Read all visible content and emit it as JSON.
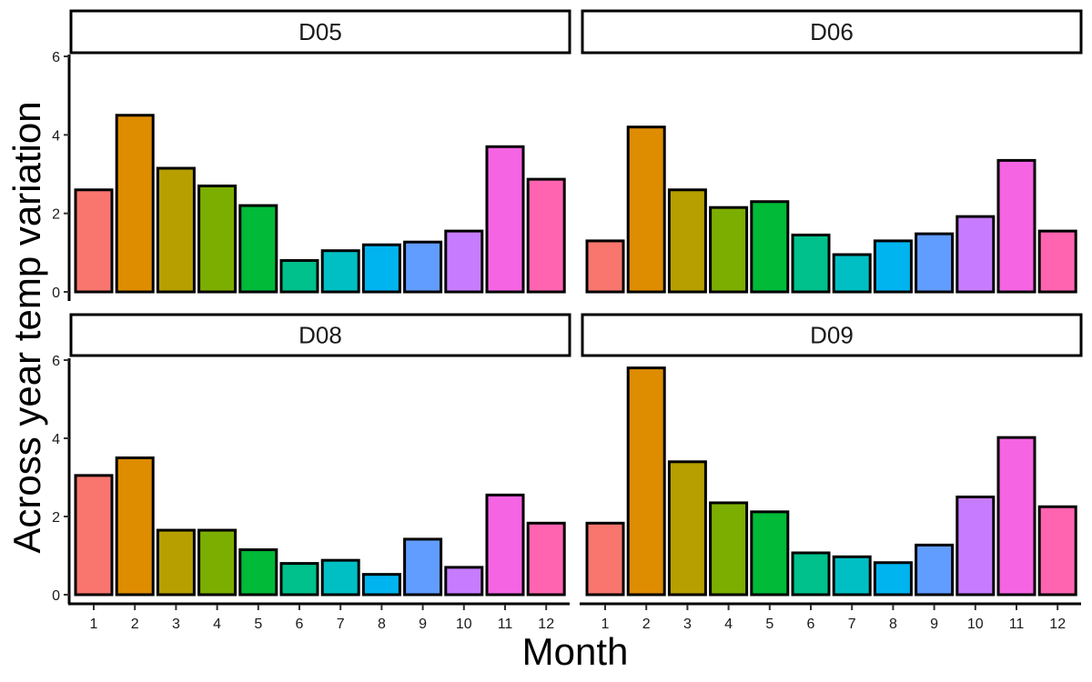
{
  "chart_data": {
    "type": "bar",
    "facet_layout": "2x2 grid, shared axes",
    "xlabel": "Month",
    "ylabel": "Across year temp variation",
    "ylim": [
      0,
      6.2
    ],
    "yticks": [
      0,
      2,
      4,
      6
    ],
    "grid": false,
    "legend": "none",
    "categories": [
      "1",
      "2",
      "3",
      "4",
      "5",
      "6",
      "7",
      "8",
      "9",
      "10",
      "11",
      "12"
    ],
    "colors": [
      "#F8766D",
      "#DE8C00",
      "#B79F00",
      "#7CAE00",
      "#00BA38",
      "#00C08B",
      "#00BFC4",
      "#00B4F0",
      "#619CFF",
      "#C77CFF",
      "#F564E3",
      "#FF64B0"
    ],
    "panels": [
      {
        "label": "D05",
        "values": [
          2.6,
          4.5,
          3.15,
          2.7,
          2.2,
          0.8,
          1.05,
          1.2,
          1.27,
          1.55,
          3.7,
          2.87
        ]
      },
      {
        "label": "D06",
        "values": [
          1.3,
          4.2,
          2.6,
          2.15,
          2.3,
          1.45,
          0.95,
          1.3,
          1.48,
          1.92,
          3.35,
          1.55
        ]
      },
      {
        "label": "D08",
        "values": [
          3.05,
          3.5,
          1.65,
          1.65,
          1.15,
          0.8,
          0.88,
          0.52,
          1.42,
          0.7,
          2.55,
          1.83
        ]
      },
      {
        "label": "D09",
        "values": [
          1.83,
          5.8,
          3.4,
          2.35,
          2.12,
          1.07,
          0.97,
          0.82,
          1.27,
          2.5,
          4.02,
          2.25
        ]
      }
    ]
  }
}
